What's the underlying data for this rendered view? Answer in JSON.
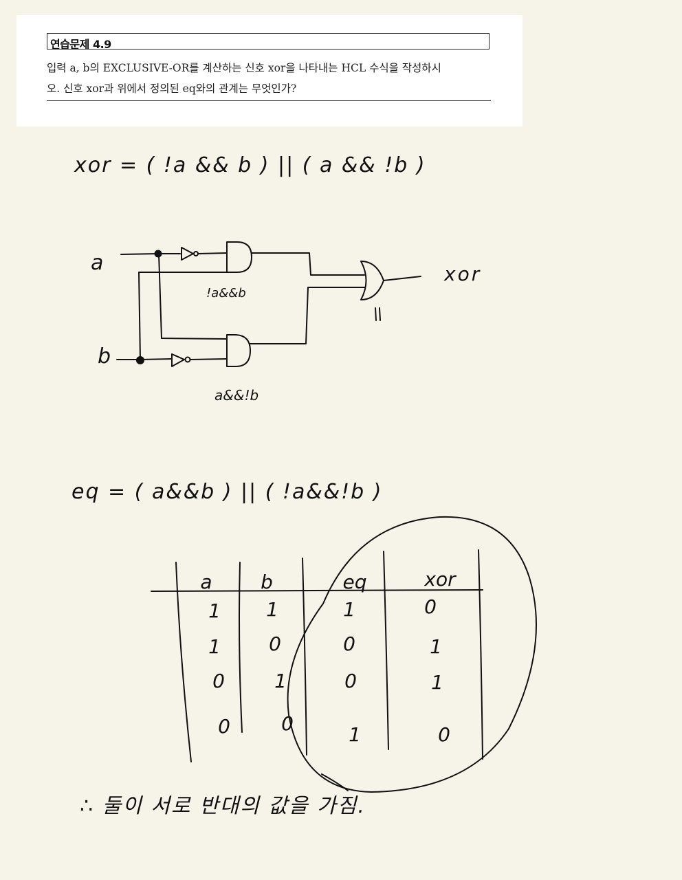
{
  "problem": {
    "title": "연습문제 4.9",
    "line1": "입력 a, b의 EXCLUSIVE-OR를 계산하는 신호 xor을 나타내는 HCL 수식을 작성하시",
    "line2": "오. 신호 xor과 위에서 정의된 eq와의 관계는 무엇인가?"
  },
  "notes": {
    "xor_expression": "xor = ( !a && b ) || ( a && !b )",
    "circuit": {
      "input_a": "a",
      "input_b": "b",
      "output": "xor",
      "upper_gate_label": "!a&&b",
      "lower_gate_label": "a&&!b",
      "or_gate_label": "||"
    },
    "eq_expression": "eq = ( a&&b ) || ( !a&&!b )",
    "truth_table": {
      "headers": [
        "a",
        "b",
        "eq",
        "xor"
      ],
      "rows": [
        [
          "1",
          "1",
          "1",
          "0"
        ],
        [
          "1",
          "0",
          "0",
          "1"
        ],
        [
          "0",
          "1",
          "0",
          "1"
        ],
        [
          "0",
          "0",
          "1",
          "0"
        ]
      ]
    },
    "conclusion": "∴ 둘이 서로 반대의 값을 가짐."
  }
}
